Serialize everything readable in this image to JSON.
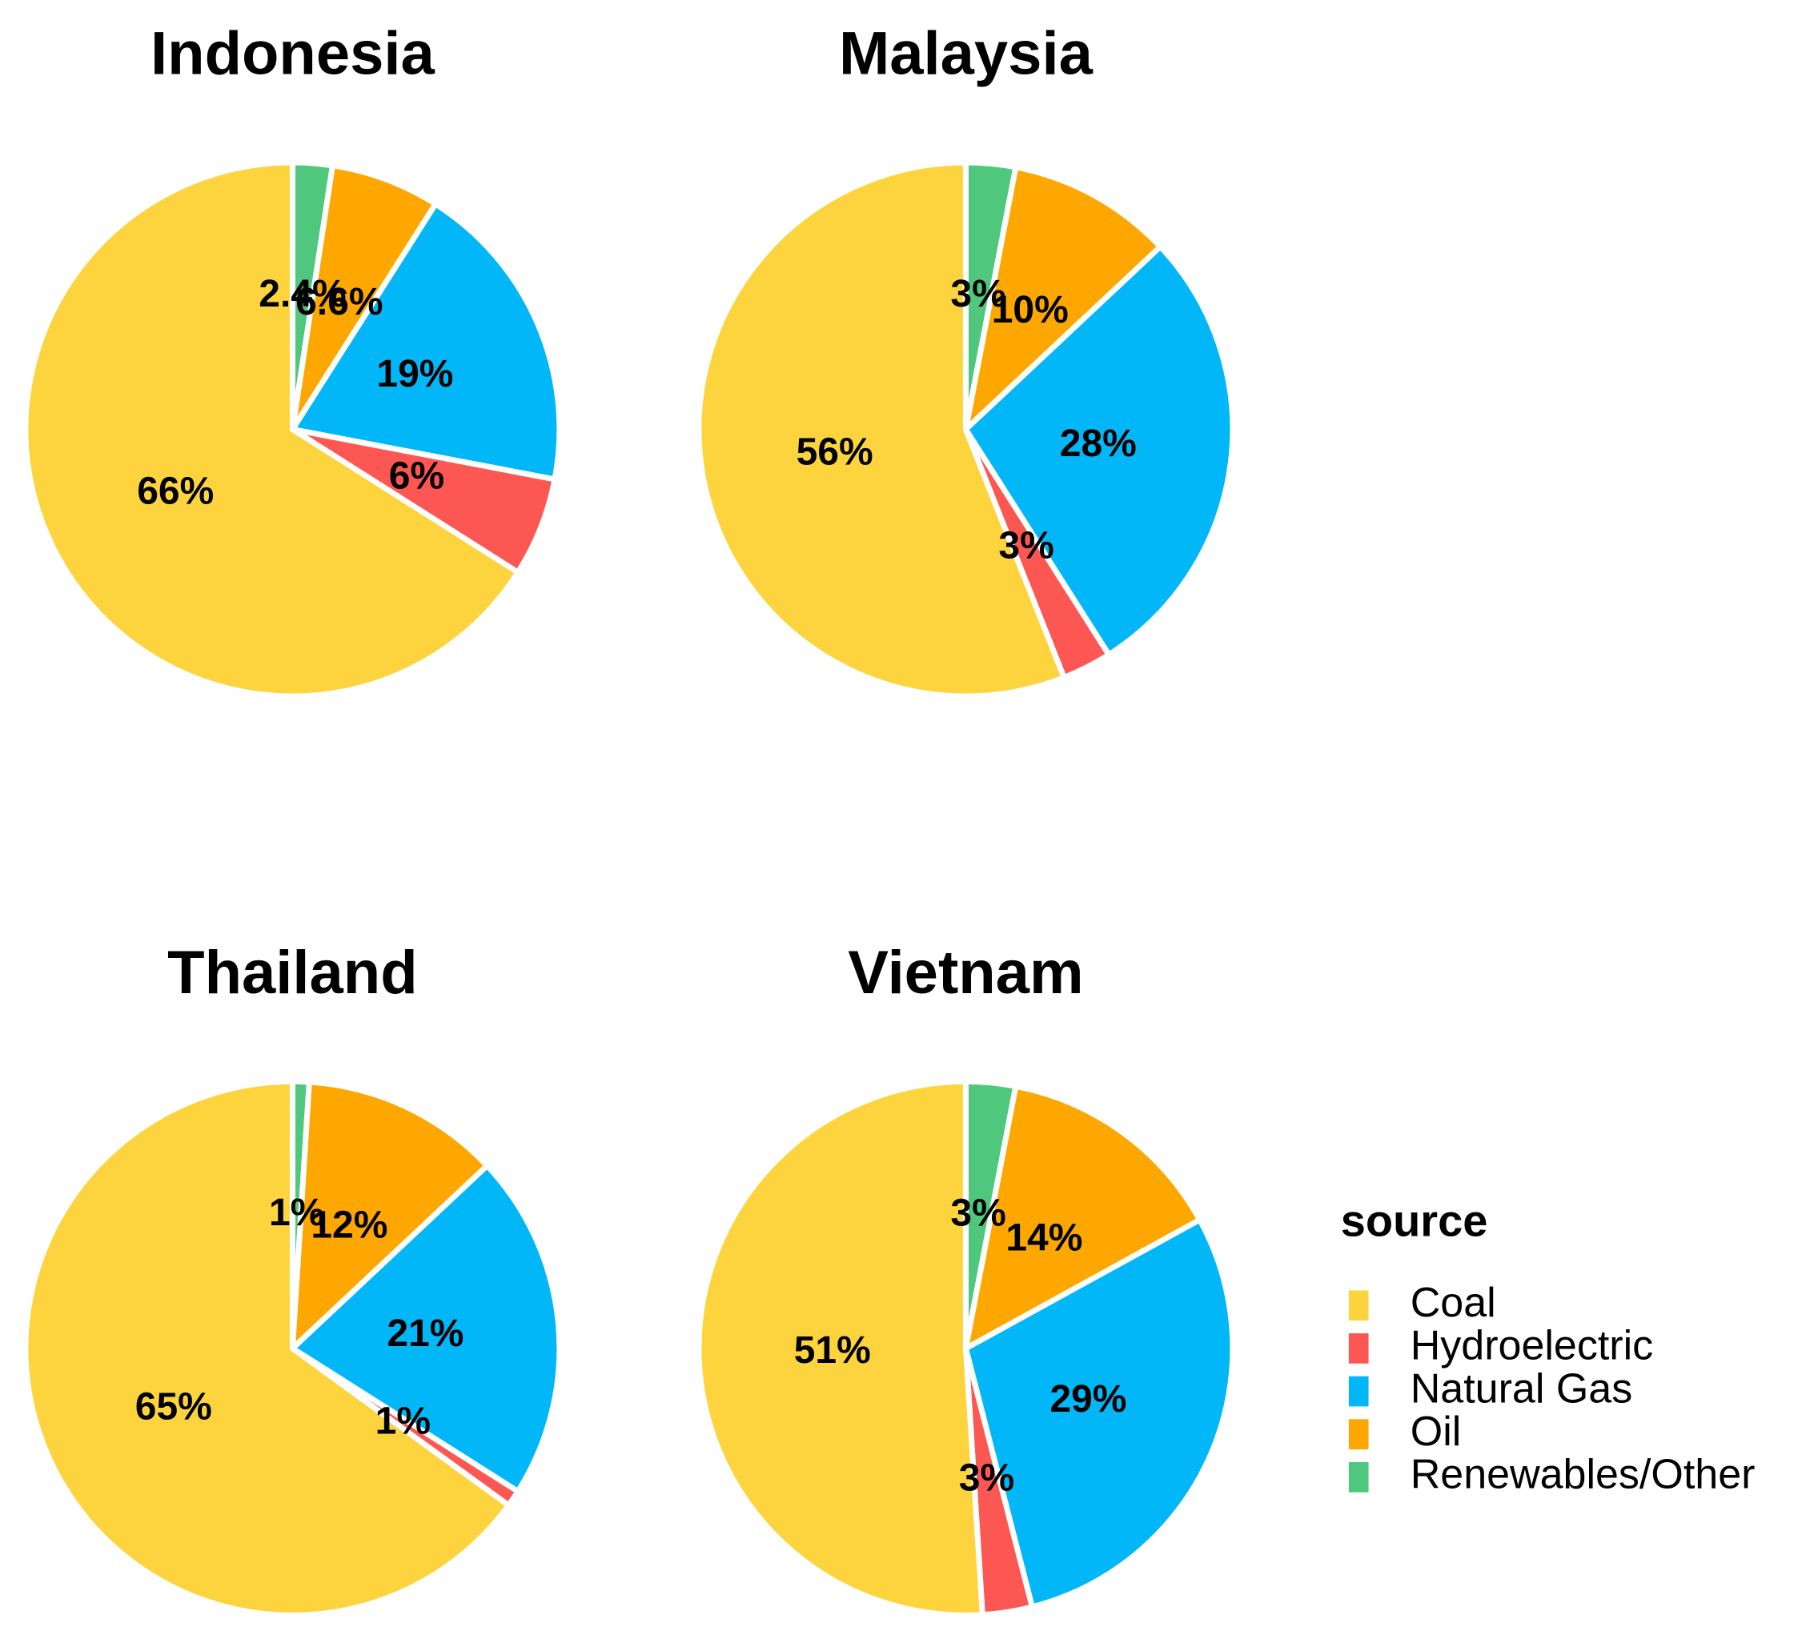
{
  "chart_data": [
    {
      "type": "pie",
      "title": "Indonesia",
      "legend_title": "source",
      "categories": [
        "Coal",
        "Hydroelectric",
        "Natural Gas",
        "Oil",
        "Renewables/Other"
      ],
      "colors": [
        "#fdd43e",
        "#fd5754",
        "#02b7f8",
        "#fda700",
        "#4fc87e"
      ],
      "values": [
        66,
        6,
        19,
        6.6,
        2.4
      ],
      "value_labels": [
        "66%",
        "6%",
        "19%",
        "6.6%",
        "2.4%"
      ]
    },
    {
      "type": "pie",
      "title": "Malaysia",
      "categories": [
        "Coal",
        "Hydroelectric",
        "Natural Gas",
        "Oil",
        "Renewables/Other"
      ],
      "colors": [
        "#fdd43e",
        "#fd5754",
        "#02b7f8",
        "#fda700",
        "#4fc87e"
      ],
      "values": [
        56,
        3,
        28,
        10,
        3
      ],
      "value_labels": [
        "56%",
        "3%",
        "28%",
        "10%",
        "3%"
      ]
    },
    {
      "type": "pie",
      "title": "Thailand",
      "categories": [
        "Coal",
        "Hydroelectric",
        "Natural Gas",
        "Oil",
        "Renewables/Other"
      ],
      "colors": [
        "#fdd43e",
        "#fd5754",
        "#02b7f8",
        "#fda700",
        "#4fc87e"
      ],
      "values": [
        65,
        1,
        21,
        12,
        1
      ],
      "value_labels": [
        "65%",
        "1%",
        "21%",
        "12%",
        "1%"
      ]
    },
    {
      "type": "pie",
      "title": "Vietnam",
      "categories": [
        "Coal",
        "Hydroelectric",
        "Natural Gas",
        "Oil",
        "Renewables/Other"
      ],
      "colors": [
        "#fdd43e",
        "#fd5754",
        "#02b7f8",
        "#fda700",
        "#4fc87e"
      ],
      "values": [
        51,
        3,
        29,
        14,
        3
      ],
      "value_labels": [
        "51%",
        "3%",
        "29%",
        "14%",
        "3%"
      ]
    }
  ]
}
